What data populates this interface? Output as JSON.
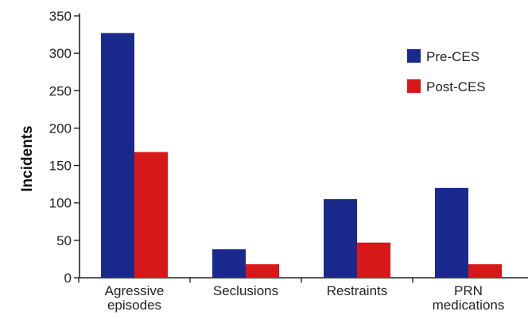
{
  "chart_data": {
    "type": "bar",
    "ylabel": "Incidents",
    "ylim": [
      0,
      350
    ],
    "yticks": [
      "0",
      "50",
      "100",
      "150",
      "200",
      "250",
      "300",
      "350"
    ],
    "categories": [
      [
        "Agressive",
        "episodes"
      ],
      [
        "Seclusions"
      ],
      [
        "Restraints"
      ],
      [
        "PRN",
        "medications"
      ]
    ],
    "series": [
      {
        "name": "Pre-CES",
        "color": "#1a2a8c",
        "values": [
          327,
          38,
          105,
          120
        ]
      },
      {
        "name": "Post-CES",
        "color": "#d81818",
        "values": [
          168,
          18,
          47,
          18
        ]
      }
    ],
    "legend_position": "top-right",
    "grid": false
  }
}
